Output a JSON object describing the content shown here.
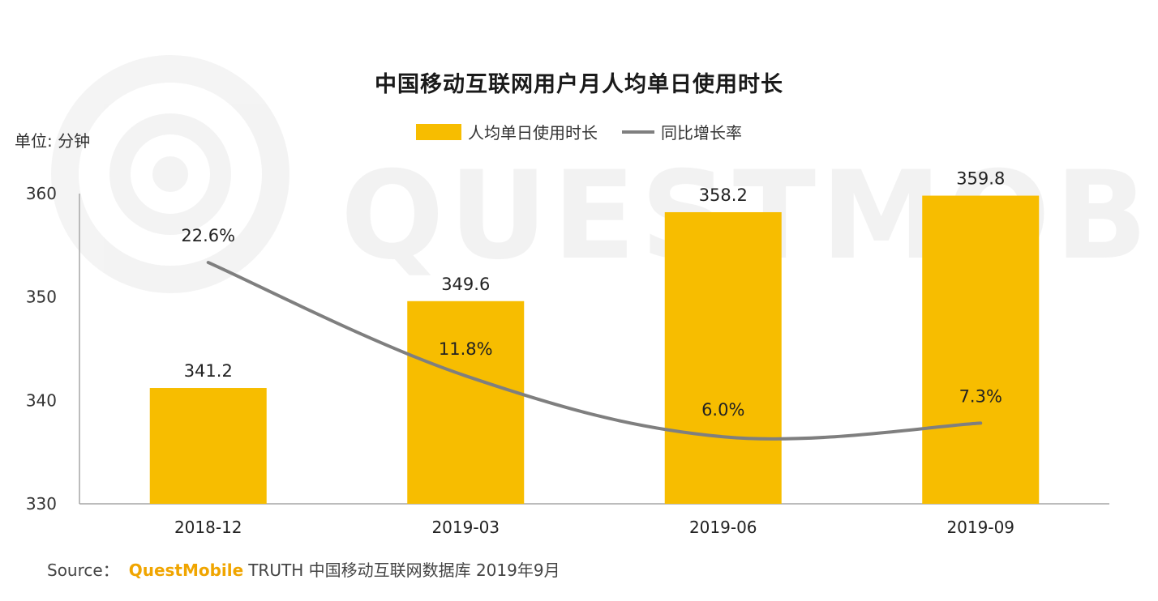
{
  "watermark": "QUESTMOBILE",
  "colors": {
    "bar": "#f7bd00",
    "line": "#7f7f7f",
    "axis": "#a6a6a6",
    "brand": "#f0a500"
  },
  "chart_data": {
    "type": "bar",
    "title": "中国移动互联网用户月人均单日使用时长",
    "unit_label": "单位: 分钟",
    "categories": [
      "2018-12",
      "2019-03",
      "2019-06",
      "2019-09"
    ],
    "series": [
      {
        "name": "人均单日使用时长",
        "kind": "bar",
        "values": [
          341.2,
          349.6,
          358.2,
          359.8
        ],
        "labels": [
          "341.2",
          "349.6",
          "358.2",
          "359.8"
        ]
      },
      {
        "name": "同比增长率",
        "kind": "line",
        "values": [
          22.6,
          11.8,
          6.0,
          7.3
        ],
        "labels": [
          "22.6%",
          "11.8%",
          "6.0%",
          "7.3%"
        ]
      }
    ],
    "ylim": [
      330,
      360
    ],
    "yticks": [
      "330",
      "340",
      "350",
      "360"
    ],
    "legend_position": "top-center"
  },
  "source": {
    "prefix": "Source：",
    "brand": "QuestMobile",
    "text": "TRUTH 中国移动互联网数据库 2019年9月"
  }
}
